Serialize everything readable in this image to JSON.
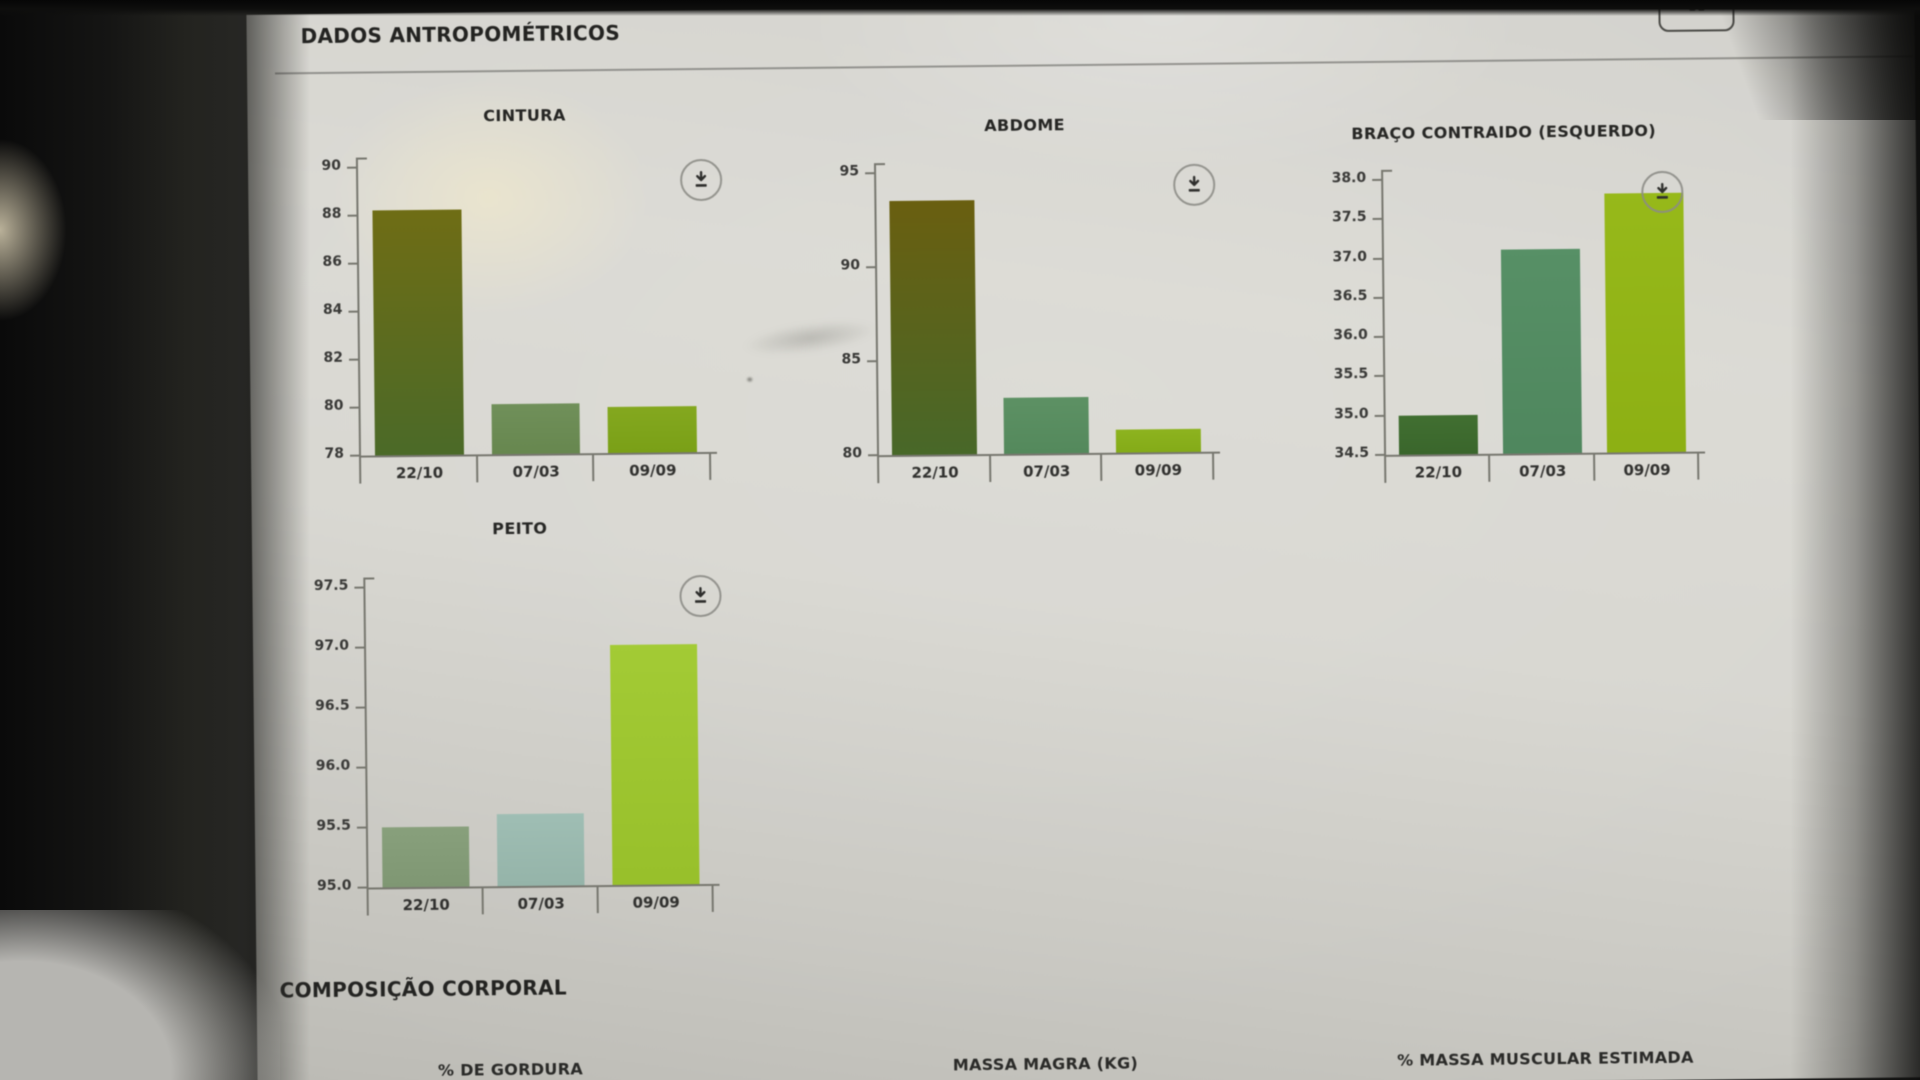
{
  "header": {
    "title": "DADOS ANTROPOMÉTRICOS"
  },
  "toolbar": {
    "top_right_button_icon": "apps-grid-icon"
  },
  "sections": {
    "anthropometric": {
      "title": "DADOS ANTROPOMÉTRICOS"
    },
    "body_composition": {
      "title": "COMPOSIÇÃO CORPORAL",
      "pending_chart_titles": [
        "% DE GORDURA",
        "MASSA MAGRA (KG)",
        "% MASSA MUSCULAR ESTIMADA"
      ]
    }
  },
  "chart_data": [
    {
      "type": "bar",
      "title": "CINTURA",
      "categories": [
        "22/10",
        "07/03",
        "09/09"
      ],
      "values": [
        88.2,
        80.1,
        79.9
      ],
      "ylim": [
        78,
        90
      ],
      "ytick_values": [
        90,
        88,
        86,
        84,
        82,
        80,
        78
      ],
      "ytick_labels": [
        "90",
        "88",
        "86",
        "84",
        "82",
        "80",
        "78"
      ],
      "xlabel": "",
      "ylabel": "",
      "grid": false,
      "legend": null,
      "action_icon": "download-icon",
      "bar_colors": [
        [
          "#6f6d15",
          "#4b6a28"
        ],
        [
          "#70905a",
          "#67874f"
        ],
        [
          "#84a81f",
          "#7aa017"
        ]
      ]
    },
    {
      "type": "bar",
      "title": "ABDOME",
      "categories": [
        "22/10",
        "07/03",
        "09/09"
      ],
      "values": [
        93.5,
        83.0,
        81.2
      ],
      "ylim": [
        80,
        95
      ],
      "ytick_values": [
        95,
        90,
        85,
        80
      ],
      "ytick_labels": [
        "95",
        "90",
        "85",
        "80"
      ],
      "xlabel": "",
      "ylabel": "",
      "grid": false,
      "legend": null,
      "action_icon": "download-icon",
      "bar_colors": [
        [
          "#6a5f10",
          "#486829"
        ],
        [
          "#5d9164",
          "#54895c"
        ],
        [
          "#8db31f",
          "#84ab18"
        ]
      ]
    },
    {
      "type": "bar",
      "title": "BRAÇO CONTRAIDO (ESQUERDO)",
      "categories": [
        "22/10",
        "07/03",
        "09/09"
      ],
      "values": [
        35.0,
        37.1,
        37.8
      ],
      "ylim": [
        34.5,
        38.0
      ],
      "ytick_values": [
        38.0,
        37.5,
        37.0,
        36.5,
        36.0,
        35.5,
        35.0,
        34.5
      ],
      "ytick_labels": [
        "38.0",
        "37.5",
        "37.0",
        "36.5",
        "36.0",
        "35.5",
        "35.0",
        "34.5"
      ],
      "xlabel": "",
      "ylabel": "",
      "grid": false,
      "legend": null,
      "action_icon": "download-icon",
      "bar_colors": [
        [
          "#416f31",
          "#3a662c"
        ],
        [
          "#579066",
          "#4f875e"
        ],
        [
          "#97b91a",
          "#8db014"
        ]
      ]
    },
    {
      "type": "bar",
      "title": "PEITO",
      "categories": [
        "22/10",
        "07/03",
        "09/09"
      ],
      "values": [
        95.5,
        95.6,
        97.0
      ],
      "ylim": [
        95.0,
        97.5
      ],
      "ytick_values": [
        97.5,
        97.0,
        96.5,
        96.0,
        95.5,
        95.0
      ],
      "ytick_labels": [
        "97.5",
        "97.0",
        "96.5",
        "96.0",
        "95.5",
        "95.0"
      ],
      "xlabel": "",
      "ylabel": "",
      "grid": false,
      "legend": null,
      "action_icon": "download-icon",
      "bar_colors": [
        [
          "#88a07c",
          "#7f9773"
        ],
        [
          "#9fbeb4",
          "#95b4a9"
        ],
        [
          "#a3cb35",
          "#98c02b"
        ]
      ]
    }
  ]
}
